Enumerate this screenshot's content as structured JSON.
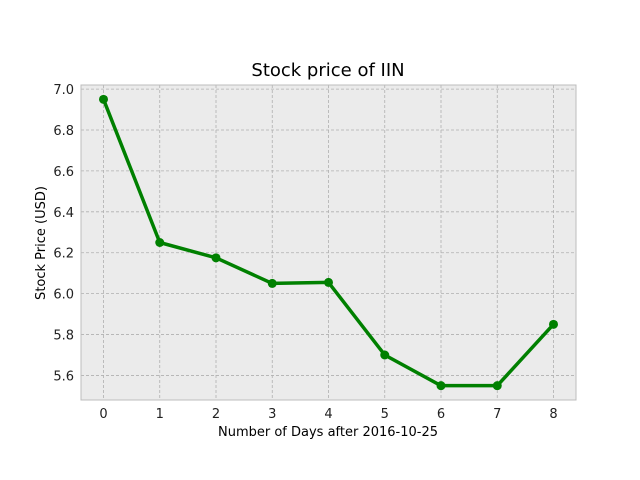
{
  "chart_data": {
    "type": "line",
    "title": "Stock price of IIN",
    "xlabel": "Number of Days after 2016-10-25",
    "ylabel": "Stock Price (USD)",
    "x": [
      0,
      1,
      2,
      3,
      4,
      5,
      6,
      7,
      8
    ],
    "series": [
      {
        "values": [
          6.95,
          6.25,
          6.175,
          6.05,
          6.055,
          5.7,
          5.55,
          5.55,
          5.85
        ],
        "color": "#008000"
      }
    ],
    "xlim": [
      -0.4,
      8.4
    ],
    "ylim": [
      5.48,
      7.02
    ],
    "x_ticks": [
      0,
      1,
      2,
      3,
      4,
      5,
      6,
      7,
      8
    ],
    "y_ticks": [
      "5.6",
      "5.8",
      "6.0",
      "6.2",
      "6.4",
      "6.6",
      "6.8",
      "7.0"
    ],
    "grid": true,
    "background": "#ebebeb"
  }
}
